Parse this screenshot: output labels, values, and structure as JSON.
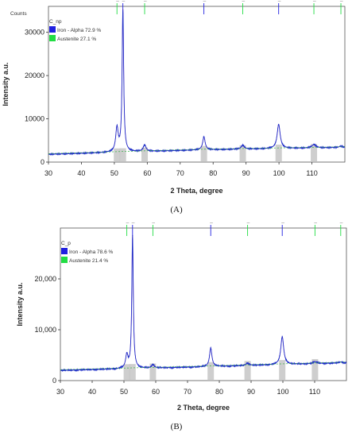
{
  "chart_data": [
    {
      "type": "line",
      "panel_label": "(A)",
      "sample": "C_np",
      "counts_label": "Counts",
      "xlabel": "2 Theta, degree",
      "ylabel": "Intensity a.u.",
      "xlim": [
        30,
        120
      ],
      "ylim": [
        0,
        36000
      ],
      "xticks": [
        "30",
        "40",
        "50",
        "60",
        "70",
        "80",
        "90",
        "100",
        "110"
      ],
      "yticks": [
        {
          "v": 0,
          "t": "0"
        },
        {
          "v": 10000,
          "t": "10000"
        },
        {
          "v": 20000,
          "t": "20000"
        },
        {
          "v": 30000,
          "t": "30000"
        }
      ],
      "phases": [
        {
          "name": "Iron - Alpha 72.9 %",
          "color": "#2020e0",
          "markers": [
            52.6,
            77.2,
            99.9
          ]
        },
        {
          "name": "Austenite 27.1 %",
          "color": "#22dd44",
          "markers": [
            50.8,
            59.2,
            89.0,
            110.6,
            118.8
          ]
        }
      ],
      "baseline": [
        {
          "x": 30,
          "y": 1800
        },
        {
          "x": 75,
          "y": 2800
        },
        {
          "x": 120,
          "y": 3400
        }
      ],
      "peaks": [
        {
          "x": 50.8,
          "h": 5500,
          "w": 0.45
        },
        {
          "x": 52.6,
          "h": 32800,
          "w": 0.28
        },
        {
          "x": 59.2,
          "h": 1500,
          "w": 0.5
        },
        {
          "x": 77.2,
          "h": 3000,
          "w": 0.45
        },
        {
          "x": 89.0,
          "h": 900,
          "w": 0.6
        },
        {
          "x": 99.9,
          "h": 5600,
          "w": 0.55
        },
        {
          "x": 110.6,
          "h": 800,
          "w": 0.7
        },
        {
          "x": 118.8,
          "h": 300,
          "w": 0.6
        }
      ],
      "bars": [
        50.8,
        52.6,
        59.2,
        77.2,
        89.0,
        99.9,
        110.6
      ]
    },
    {
      "type": "line",
      "panel_label": "(B)",
      "sample": "C_p",
      "counts_label": "",
      "xlabel": "2 Theta, degree",
      "ylabel": "Intensity a.u.",
      "xlim": [
        30,
        120
      ],
      "ylim": [
        0,
        30000
      ],
      "xticks": [
        "30",
        "40",
        "50",
        "60",
        "70",
        "80",
        "90",
        "100",
        "110"
      ],
      "yticks": [
        {
          "v": 0,
          "t": "0"
        },
        {
          "v": 10000,
          "t": "10,000"
        },
        {
          "v": 20000,
          "t": "20,000"
        }
      ],
      "phases": [
        {
          "name": "Iron - Alpha 78.6 %",
          "color": "#2020e0",
          "markers": [
            52.7,
            77.3,
            99.8
          ]
        },
        {
          "name": "Austenite 21.4 %",
          "color": "#22dd44",
          "markers": [
            50.9,
            59.1,
            88.9,
            110.1,
            118.2
          ]
        }
      ],
      "baseline": [
        {
          "x": 30,
          "y": 2000
        },
        {
          "x": 75,
          "y": 2700
        },
        {
          "x": 120,
          "y": 3500
        }
      ],
      "peaks": [
        {
          "x": 50.9,
          "h": 2600,
          "w": 0.45
        },
        {
          "x": 52.7,
          "h": 26000,
          "w": 0.28
        },
        {
          "x": 59.1,
          "h": 700,
          "w": 0.5
        },
        {
          "x": 77.3,
          "h": 3700,
          "w": 0.45
        },
        {
          "x": 88.9,
          "h": 500,
          "w": 0.6
        },
        {
          "x": 99.8,
          "h": 5500,
          "w": 0.55
        },
        {
          "x": 110.1,
          "h": 400,
          "w": 0.7
        },
        {
          "x": 118.2,
          "h": 200,
          "w": 0.6
        }
      ],
      "bars": [
        50.9,
        52.7,
        59.1,
        77.3,
        88.9,
        99.8,
        110.1
      ]
    }
  ]
}
